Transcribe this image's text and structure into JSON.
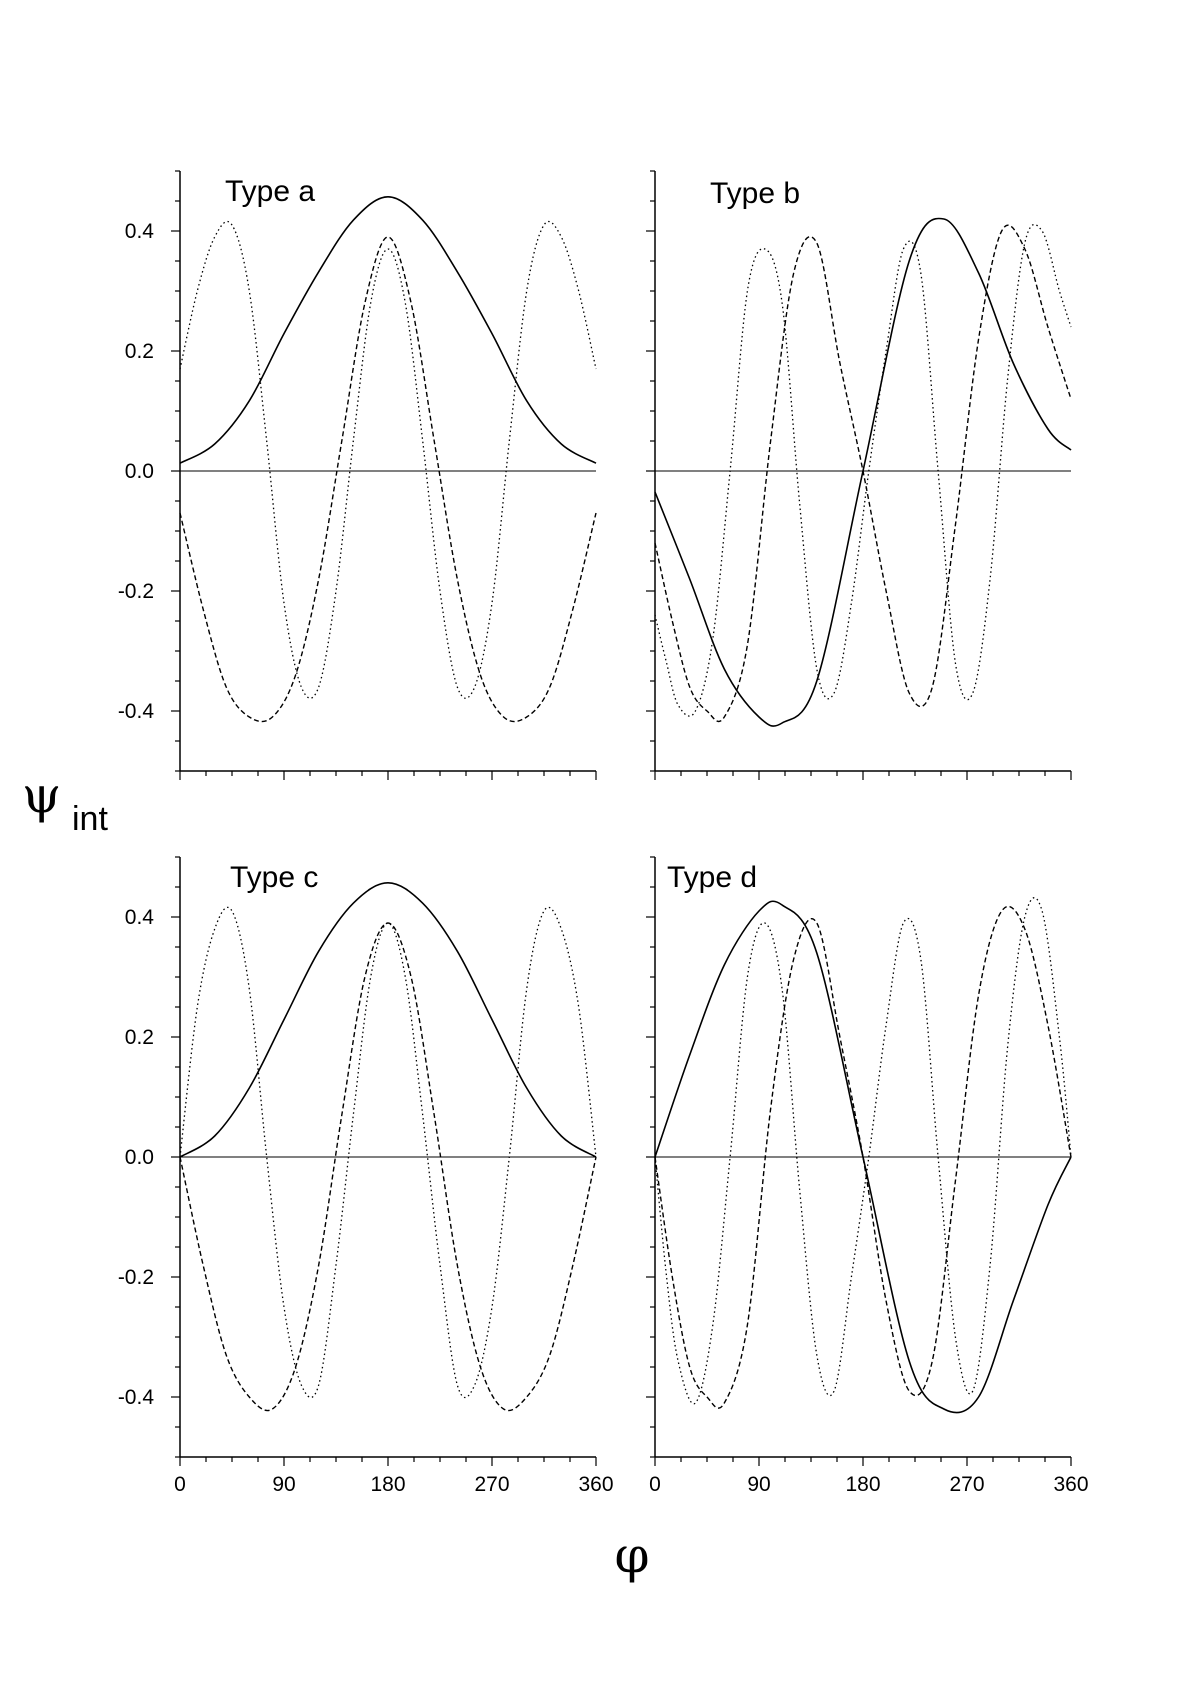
{
  "figure": {
    "ylabel_main": "ψ",
    "ylabel_sub": "int",
    "xlabel": "φ"
  },
  "chart_data": [
    {
      "type": "line",
      "title": "Type a",
      "xlim": [
        0,
        360
      ],
      "ylim": [
        -0.5,
        0.5
      ],
      "xticks": [
        0,
        90,
        180,
        270,
        360
      ],
      "xticklabels": [],
      "yticks": [
        -0.4,
        -0.2,
        0.0,
        0.2,
        0.4
      ],
      "yticklabels": [
        "-0.4",
        "-0.2",
        "0.0",
        "0.2",
        "0.4"
      ],
      "zero_line": true,
      "series": [
        {
          "style": "solid",
          "x": [
            0,
            30,
            60,
            90,
            120,
            150,
            180,
            210,
            240,
            270,
            300,
            330,
            360
          ],
          "values": [
            0.013,
            0.045,
            0.117,
            0.229,
            0.332,
            0.418,
            0.457,
            0.418,
            0.332,
            0.229,
            0.117,
            0.045,
            0.013
          ]
        },
        {
          "style": "dashed",
          "x": [
            0,
            20,
            40,
            60,
            80,
            100,
            120,
            140,
            160,
            180,
            200,
            220,
            240,
            260,
            280,
            300,
            320,
            340,
            360
          ],
          "values": [
            -0.07,
            -0.23,
            -0.36,
            -0.41,
            -0.41,
            -0.34,
            -0.18,
            0.05,
            0.28,
            0.39,
            0.28,
            0.05,
            -0.18,
            -0.34,
            -0.41,
            -0.41,
            -0.36,
            -0.23,
            -0.07
          ]
        },
        {
          "style": "dotted",
          "x": [
            0,
            15,
            30,
            45,
            60,
            75,
            90,
            105,
            120,
            135,
            150,
            165,
            180,
            195,
            210,
            225,
            240,
            255,
            270,
            285,
            300,
            315,
            330,
            345,
            360
          ],
          "values": [
            0.17,
            0.3,
            0.39,
            0.41,
            0.3,
            0.05,
            -0.22,
            -0.36,
            -0.36,
            -0.2,
            0.05,
            0.28,
            0.37,
            0.28,
            0.05,
            -0.2,
            -0.36,
            -0.36,
            -0.22,
            0.05,
            0.3,
            0.41,
            0.39,
            0.3,
            0.17
          ]
        }
      ]
    },
    {
      "type": "line",
      "title": "Type b",
      "xlim": [
        0,
        360
      ],
      "ylim": [
        -0.5,
        0.5
      ],
      "xticks": [
        0,
        90,
        180,
        270,
        360
      ],
      "xticklabels": [],
      "yticks": [
        -0.4,
        -0.2,
        0.0,
        0.2,
        0.4
      ],
      "yticklabels": [],
      "zero_line": true,
      "series": [
        {
          "style": "solid",
          "x": [
            0,
            30,
            60,
            90,
            110,
            140,
            180,
            220,
            250,
            280,
            310,
            340,
            360
          ],
          "values": [
            -0.035,
            -0.18,
            -0.33,
            -0.41,
            -0.42,
            -0.35,
            0.0,
            0.35,
            0.42,
            0.33,
            0.18,
            0.07,
            0.035
          ]
        },
        {
          "style": "dashed",
          "x": [
            0,
            15,
            30,
            45,
            60,
            80,
            100,
            120,
            140,
            160,
            180,
            200,
            220,
            240,
            260,
            280,
            300,
            320,
            340,
            360
          ],
          "values": [
            -0.12,
            -0.25,
            -0.36,
            -0.4,
            -0.41,
            -0.29,
            0.05,
            0.33,
            0.38,
            0.18,
            0.0,
            -0.2,
            -0.37,
            -0.36,
            -0.09,
            0.22,
            0.4,
            0.37,
            0.24,
            0.12
          ]
        },
        {
          "style": "dotted",
          "x": [
            0,
            10,
            20,
            35,
            50,
            65,
            80,
            95,
            110,
            125,
            140,
            155,
            170,
            185,
            200,
            215,
            230,
            245,
            260,
            275,
            290,
            305,
            320,
            335,
            350,
            360
          ],
          "values": [
            -0.24,
            -0.32,
            -0.39,
            -0.4,
            -0.28,
            0.0,
            0.3,
            0.37,
            0.28,
            -0.05,
            -0.33,
            -0.37,
            -0.22,
            0.0,
            0.2,
            0.37,
            0.33,
            0.0,
            -0.32,
            -0.37,
            -0.18,
            0.15,
            0.38,
            0.4,
            0.3,
            0.24
          ]
        }
      ]
    },
    {
      "type": "line",
      "title": "Type c",
      "xlim": [
        0,
        360
      ],
      "ylim": [
        -0.5,
        0.5
      ],
      "xticks": [
        0,
        90,
        180,
        270,
        360
      ],
      "xticklabels": [
        "0",
        "90",
        "180",
        "270",
        "360"
      ],
      "yticks": [
        -0.4,
        -0.2,
        0.0,
        0.2,
        0.4
      ],
      "yticklabels": [
        "-0.4",
        "-0.2",
        "0.0",
        "0.2",
        "0.4"
      ],
      "zero_line": true,
      "series": [
        {
          "style": "solid",
          "x": [
            0,
            30,
            60,
            90,
            120,
            150,
            180,
            210,
            240,
            270,
            300,
            330,
            360
          ],
          "values": [
            0.0,
            0.035,
            0.115,
            0.229,
            0.343,
            0.423,
            0.457,
            0.423,
            0.343,
            0.229,
            0.115,
            0.035,
            0.0
          ]
        },
        {
          "style": "dashed",
          "x": [
            0,
            20,
            40,
            60,
            80,
            100,
            120,
            140,
            160,
            180,
            200,
            220,
            240,
            260,
            280,
            300,
            320,
            340,
            360
          ],
          "values": [
            0.0,
            -0.18,
            -0.33,
            -0.4,
            -0.42,
            -0.35,
            -0.18,
            0.07,
            0.3,
            0.39,
            0.3,
            0.07,
            -0.18,
            -0.35,
            -0.42,
            -0.4,
            -0.33,
            -0.18,
            0.0
          ]
        },
        {
          "style": "dotted",
          "x": [
            0,
            15,
            30,
            45,
            60,
            75,
            90,
            105,
            120,
            135,
            150,
            165,
            180,
            195,
            210,
            225,
            240,
            255,
            270,
            285,
            300,
            315,
            330,
            345,
            360
          ],
          "values": [
            0.0,
            0.25,
            0.38,
            0.41,
            0.28,
            0.0,
            -0.25,
            -0.38,
            -0.38,
            -0.18,
            0.07,
            0.3,
            0.39,
            0.3,
            0.07,
            -0.18,
            -0.38,
            -0.38,
            -0.25,
            0.0,
            0.28,
            0.41,
            0.38,
            0.25,
            0.0
          ]
        }
      ]
    },
    {
      "type": "line",
      "title": "Type d",
      "xlim": [
        0,
        360
      ],
      "ylim": [
        -0.5,
        0.5
      ],
      "xticks": [
        0,
        90,
        180,
        270,
        360
      ],
      "xticklabels": [
        "0",
        "90",
        "180",
        "270",
        "360"
      ],
      "yticks": [
        -0.4,
        -0.2,
        0.0,
        0.2,
        0.4
      ],
      "yticklabels": [],
      "zero_line": true,
      "series": [
        {
          "style": "solid",
          "x": [
            0,
            30,
            60,
            90,
            110,
            140,
            180,
            220,
            250,
            280,
            310,
            340,
            360
          ],
          "values": [
            0.0,
            0.17,
            0.32,
            0.41,
            0.42,
            0.34,
            0.0,
            -0.34,
            -0.42,
            -0.4,
            -0.24,
            -0.08,
            0.0
          ]
        },
        {
          "style": "dashed",
          "x": [
            0,
            15,
            30,
            45,
            60,
            80,
            100,
            120,
            140,
            160,
            180,
            200,
            220,
            240,
            260,
            280,
            300,
            320,
            340,
            360
          ],
          "values": [
            0.0,
            -0.2,
            -0.35,
            -0.4,
            -0.41,
            -0.28,
            0.08,
            0.33,
            0.39,
            0.2,
            0.0,
            -0.24,
            -0.39,
            -0.34,
            -0.04,
            0.27,
            0.41,
            0.38,
            0.22,
            0.0
          ]
        },
        {
          "style": "dotted",
          "x": [
            0,
            10,
            20,
            35,
            50,
            65,
            80,
            95,
            110,
            125,
            140,
            155,
            170,
            185,
            200,
            215,
            230,
            245,
            260,
            275,
            290,
            305,
            320,
            335,
            350,
            360
          ],
          "values": [
            0.0,
            -0.2,
            -0.34,
            -0.41,
            -0.28,
            0.0,
            0.3,
            0.39,
            0.28,
            -0.05,
            -0.33,
            -0.39,
            -0.2,
            0.0,
            0.22,
            0.39,
            0.33,
            0.0,
            -0.3,
            -0.39,
            -0.18,
            0.18,
            0.4,
            0.41,
            0.2,
            0.0
          ]
        }
      ]
    }
  ]
}
